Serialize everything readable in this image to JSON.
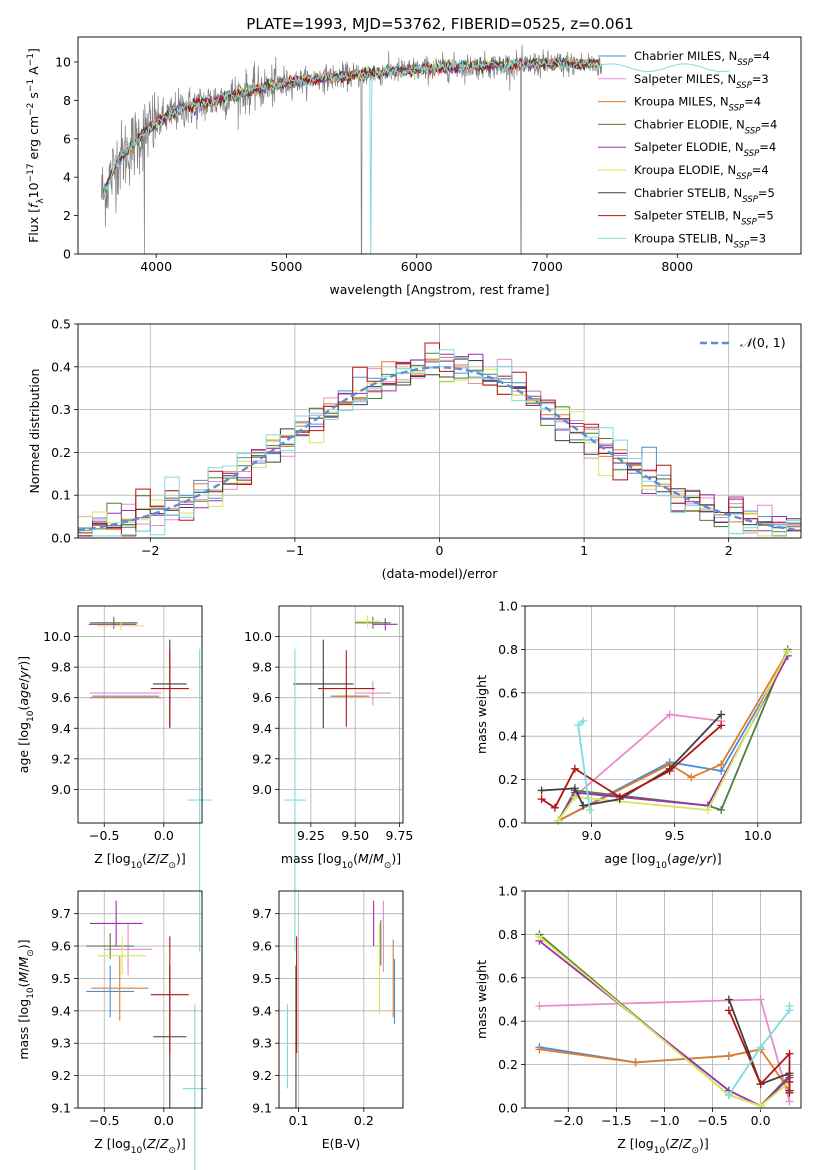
{
  "figure": {
    "title": "PLATE=1993, MJD=53762, FIBERID=0525, z=0.061"
  },
  "model_colors": {
    "Chabrier MILES": "#4a8fd6",
    "Salpeter MILES": "#e88dc8",
    "Kroupa MILES": "#e07b2a",
    "Chabrier ELODIE": "#4f7f3f",
    "Salpeter ELODIE": "#9b2fb0",
    "Kroupa ELODIE": "#d4e85a",
    "Chabrier STELIB": "#3f3f3f",
    "Salpeter STELIB": "#b01515",
    "Kroupa STELIB": "#7fdcdc"
  },
  "legend_spectrum": [
    {
      "name": "Chabrier MILES",
      "nssp": "4"
    },
    {
      "name": "Salpeter MILES",
      "nssp": "3"
    },
    {
      "name": "Kroupa MILES",
      "nssp": "4"
    },
    {
      "name": "Chabrier ELODIE",
      "nssp": "4"
    },
    {
      "name": "Salpeter ELODIE",
      "nssp": "4"
    },
    {
      "name": "Kroupa ELODIE",
      "nssp": "4"
    },
    {
      "name": "Chabrier STELIB",
      "nssp": "5"
    },
    {
      "name": "Salpeter STELIB",
      "nssp": "5"
    },
    {
      "name": "Kroupa STELIB",
      "nssp": "3"
    }
  ],
  "chart_data": [
    {
      "id": "spectrum",
      "type": "line",
      "xlabel": "wavelength [Angstrom, rest frame]",
      "ylabel": "Flux [fλ10⁻¹⁷ erg cm⁻² s⁻¹ A⁻¹]",
      "xlim": [
        3400,
        8950
      ],
      "ylim": [
        0,
        11.3
      ],
      "xticks": [
        4000,
        5000,
        6000,
        7000,
        8000
      ],
      "yticks": [
        0,
        2,
        4,
        6,
        8,
        10
      ],
      "data_trend": {
        "x": [
          3600,
          3700,
          3800,
          3900,
          4000,
          4100,
          4200,
          4300,
          4400,
          4600,
          4800,
          5000,
          5200,
          5500,
          5800,
          6000,
          6200,
          6500,
          6800,
          7000,
          7200,
          7400
        ],
        "y": [
          3.2,
          4.8,
          5.5,
          6.3,
          6.8,
          7.2,
          7.6,
          7.7,
          7.9,
          8.3,
          8.6,
          8.9,
          9.1,
          9.3,
          9.5,
          9.6,
          9.7,
          9.8,
          9.85,
          9.9,
          9.9,
          9.85
        ]
      },
      "model_extent": {
        "xmin": 3600,
        "xmax": 8400
      },
      "data_extent": {
        "xmin": 3580,
        "xmax": 7420
      },
      "grid": false
    },
    {
      "id": "residuals",
      "type": "histogram",
      "xlabel": "(data-model)/error",
      "ylabel": "Normed distribution",
      "xlim": [
        -2.5,
        2.5
      ],
      "ylim": [
        0,
        0.5
      ],
      "xticks": [
        -2,
        -1,
        0,
        1,
        2
      ],
      "yticks": [
        0.0,
        0.1,
        0.2,
        0.3,
        0.4,
        0.5
      ],
      "bin_width": 0.1,
      "reference_curve": {
        "name": "N(0,1)",
        "mean": 0,
        "sigma": 1
      },
      "legend_position": "top-right",
      "grid": true
    },
    {
      "id": "age_vs_Z",
      "type": "errorbar",
      "xlabel": "Z [log10(Z/Z⊙)]",
      "ylabel": "age [log10(age/yr)]",
      "xlim": [
        -0.72,
        0.32
      ],
      "ylim": [
        8.78,
        10.2
      ],
      "xticks": [
        -0.5,
        0.0
      ],
      "yticks": [
        9.0,
        9.2,
        9.4,
        9.6,
        9.8,
        10.0
      ],
      "points": [
        {
          "model": "Chabrier MILES",
          "x": -0.32,
          "xerr": 0.28,
          "y": 9.61,
          "yerr": 0.0
        },
        {
          "model": "Salpeter MILES",
          "x": -0.32,
          "xerr": 0.3,
          "y": 9.63,
          "yerr": 0.0
        },
        {
          "model": "Kroupa MILES",
          "x": -0.32,
          "xerr": 0.3,
          "y": 9.6,
          "yerr": 0.0
        },
        {
          "model": "Chabrier ELODIE",
          "x": -0.42,
          "xerr": 0.2,
          "y": 10.09,
          "yerr": 0.04
        },
        {
          "model": "Salpeter ELODIE",
          "x": -0.43,
          "xerr": 0.2,
          "y": 10.08,
          "yerr": 0.0
        },
        {
          "model": "Kroupa ELODIE",
          "x": -0.36,
          "xerr": 0.2,
          "y": 10.07,
          "yerr": 0.03
        },
        {
          "model": "Chabrier STELIB",
          "x": 0.05,
          "xerr": 0.14,
          "y": 9.69,
          "yerr": 0.29
        },
        {
          "model": "Salpeter STELIB",
          "x": 0.05,
          "xerr": 0.16,
          "y": 9.66,
          "yerr": 0.25
        },
        {
          "model": "Kroupa STELIB",
          "x": 0.3,
          "xerr": 0.1,
          "y": 8.93,
          "yerr": 0.99
        }
      ],
      "grid": true
    },
    {
      "id": "age_vs_mass",
      "type": "errorbar",
      "xlabel": "mass [log10(M/M⊙)]",
      "ylabel": "",
      "xlim": [
        9.07,
        9.77
      ],
      "ylim": [
        8.78,
        10.2
      ],
      "xticks": [
        9.25,
        9.5,
        9.75
      ],
      "yticks": [
        9.0,
        9.2,
        9.4,
        9.6,
        9.8,
        10.0
      ],
      "points": [
        {
          "model": "Chabrier MILES",
          "x": 9.46,
          "xerr": 0.1,
          "y": 9.61,
          "yerr": 0.0
        },
        {
          "model": "Salpeter MILES",
          "x": 9.6,
          "xerr": 0.1,
          "y": 9.63,
          "yerr": 0.08
        },
        {
          "model": "Kroupa MILES",
          "x": 9.48,
          "xerr": 0.1,
          "y": 9.61,
          "yerr": 0.0
        },
        {
          "model": "Chabrier ELODIE",
          "x": 9.6,
          "xerr": 0.1,
          "y": 10.09,
          "yerr": 0.04
        },
        {
          "model": "Salpeter ELODIE",
          "x": 9.67,
          "xerr": 0.07,
          "y": 10.08,
          "yerr": 0.04
        },
        {
          "model": "Kroupa ELODIE",
          "x": 9.57,
          "xerr": 0.07,
          "y": 10.1,
          "yerr": 0.04
        },
        {
          "model": "Chabrier STELIB",
          "x": 9.32,
          "xerr": 0.17,
          "y": 9.69,
          "yerr": 0.29
        },
        {
          "model": "Salpeter STELIB",
          "x": 9.45,
          "xerr": 0.16,
          "y": 9.66,
          "yerr": 0.25
        },
        {
          "model": "Kroupa STELIB",
          "x": 9.16,
          "xerr": 0.06,
          "y": 8.93,
          "yerr": 0.99
        }
      ],
      "grid": true
    },
    {
      "id": "massweight_vs_age",
      "type": "line",
      "xlabel": "age [log10(age/yr)]",
      "ylabel": "mass weight",
      "xlim": [
        8.6,
        10.26
      ],
      "ylim": [
        0,
        1.0
      ],
      "xticks": [
        9.0,
        9.5,
        10.0
      ],
      "yticks": [
        0.0,
        0.2,
        0.4,
        0.6,
        0.8,
        1.0
      ],
      "series": [
        {
          "model": "Chabrier MILES",
          "x": [
            8.8,
            9.47,
            9.78,
            10.18
          ],
          "y": [
            0.01,
            0.28,
            0.24,
            0.77
          ]
        },
        {
          "model": "Salpeter MILES",
          "x": [
            8.91,
            9.47,
            9.78
          ],
          "y": [
            0.13,
            0.5,
            0.47
          ]
        },
        {
          "model": "Kroupa MILES",
          "x": [
            8.8,
            9.47,
            9.6,
            9.78,
            10.18
          ],
          "y": [
            0.01,
            0.27,
            0.21,
            0.27,
            0.79
          ]
        },
        {
          "model": "Chabrier ELODIE",
          "x": [
            8.8,
            8.9,
            9.7,
            9.78,
            10.18
          ],
          "y": [
            0.01,
            0.15,
            0.08,
            0.06,
            0.8
          ]
        },
        {
          "model": "Salpeter ELODIE",
          "x": [
            8.8,
            8.9,
            9.7,
            10.18
          ],
          "y": [
            0.01,
            0.14,
            0.08,
            0.77
          ]
        },
        {
          "model": "Kroupa ELODIE",
          "x": [
            8.8,
            8.9,
            9.7,
            10.18
          ],
          "y": [
            0.01,
            0.12,
            0.06,
            0.79
          ]
        },
        {
          "model": "Chabrier STELIB",
          "x": [
            8.7,
            8.9,
            8.95,
            9.17,
            9.47,
            9.78
          ],
          "y": [
            0.15,
            0.16,
            0.08,
            0.11,
            0.25,
            0.5
          ]
        },
        {
          "model": "Salpeter STELIB",
          "x": [
            8.7,
            8.78,
            8.9,
            9.17,
            9.47,
            9.78
          ],
          "y": [
            0.11,
            0.07,
            0.25,
            0.12,
            0.24,
            0.45
          ]
        },
        {
          "model": "Kroupa STELIB",
          "x": [
            8.95,
            8.92,
            8.99
          ],
          "y": [
            0.47,
            0.45,
            0.06
          ]
        }
      ],
      "grid": true
    },
    {
      "id": "mass_vs_Z",
      "type": "errorbar",
      "xlabel": "Z [log10(Z/Z⊙)]",
      "ylabel": "mass [log10(M/M⊙)]",
      "xlim": [
        -0.72,
        0.32
      ],
      "ylim": [
        9.1,
        9.77
      ],
      "xticks": [
        -0.5,
        0.0
      ],
      "yticks": [
        9.1,
        9.2,
        9.3,
        9.4,
        9.5,
        9.6,
        9.7
      ],
      "points": [
        {
          "model": "Chabrier MILES",
          "x": -0.45,
          "xerr": 0.2,
          "y": 9.46,
          "yerr": 0.08
        },
        {
          "model": "Salpeter MILES",
          "x": -0.3,
          "xerr": 0.2,
          "y": 9.59,
          "yerr": 0.08
        },
        {
          "model": "Kroupa MILES",
          "x": -0.37,
          "xerr": 0.24,
          "y": 9.47,
          "yerr": 0.1
        },
        {
          "model": "Chabrier ELODIE",
          "x": -0.45,
          "xerr": 0.2,
          "y": 9.6,
          "yerr": 0.04
        },
        {
          "model": "Salpeter ELODIE",
          "x": -0.4,
          "xerr": 0.22,
          "y": 9.67,
          "yerr": 0.07
        },
        {
          "model": "Kroupa ELODIE",
          "x": -0.35,
          "xerr": 0.2,
          "y": 9.57,
          "yerr": 0.06
        },
        {
          "model": "Chabrier STELIB",
          "x": 0.05,
          "xerr": 0.14,
          "y": 9.32,
          "yerr": 0.22
        },
        {
          "model": "Salpeter STELIB",
          "x": 0.05,
          "xerr": 0.16,
          "y": 9.45,
          "yerr": 0.18
        },
        {
          "model": "Kroupa STELIB",
          "x": 0.26,
          "xerr": 0.1,
          "y": 9.16,
          "yerr": 0.26
        }
      ],
      "grid": true
    },
    {
      "id": "mass_vs_EBV",
      "type": "errorbar",
      "xlabel": "E(B-V)",
      "ylabel": "",
      "xlim": [
        0.07,
        0.26
      ],
      "ylim": [
        9.1,
        9.77
      ],
      "xticks": [
        0.1,
        0.2
      ],
      "yticks": [
        9.1,
        9.2,
        9.3,
        9.4,
        9.5,
        9.6,
        9.7
      ],
      "points": [
        {
          "model": "Chabrier MILES",
          "x": 0.247,
          "y": 9.46,
          "yerr": 0.1
        },
        {
          "model": "Salpeter MILES",
          "x": 0.23,
          "y": 9.63,
          "yerr": 0.11
        },
        {
          "model": "Kroupa MILES",
          "x": 0.245,
          "y": 9.5,
          "yerr": 0.12
        },
        {
          "model": "Chabrier ELODIE",
          "x": 0.226,
          "y": 9.61,
          "yerr": 0.07
        },
        {
          "model": "Salpeter ELODIE",
          "x": 0.215,
          "y": 9.67,
          "yerr": 0.07
        },
        {
          "model": "Kroupa ELODIE",
          "x": 0.224,
          "y": 9.53,
          "yerr": 0.14
        },
        {
          "model": "Chabrier STELIB",
          "x": 0.096,
          "y": 9.32,
          "yerr": 0.22
        },
        {
          "model": "Salpeter STELIB",
          "x": 0.097,
          "y": 9.45,
          "yerr": 0.18
        },
        {
          "model": "Kroupa STELIB",
          "x": 0.083,
          "y": 9.29,
          "yerr": 0.13
        }
      ],
      "grid": true
    },
    {
      "id": "massweight_vs_Z",
      "type": "line",
      "xlabel": "Z [log10(Z/Z⊙)]",
      "ylabel": "mass weight",
      "xlim": [
        -2.45,
        0.42
      ],
      "ylim": [
        0,
        1.0
      ],
      "xticks": [
        -2.0,
        -1.5,
        -1.0,
        -0.5,
        0.0
      ],
      "yticks": [
        0.0,
        0.2,
        0.4,
        0.6,
        0.8,
        1.0
      ],
      "series": [
        {
          "model": "Chabrier MILES",
          "x": [
            -2.3,
            -1.3,
            -0.33,
            0.0
          ],
          "y": [
            0.28,
            0.21,
            0.24,
            0.27
          ]
        },
        {
          "model": "Salpeter MILES",
          "x": [
            -2.3,
            0.0,
            0.3
          ],
          "y": [
            0.47,
            0.5,
            0.03
          ]
        },
        {
          "model": "Kroupa MILES",
          "x": [
            -2.3,
            -1.3,
            -0.33,
            0.0,
            0.3
          ],
          "y": [
            0.27,
            0.21,
            0.24,
            0.27,
            0.08
          ]
        },
        {
          "model": "Chabrier ELODIE",
          "x": [
            -2.3,
            -0.33,
            0.0,
            0.3
          ],
          "y": [
            0.8,
            0.06,
            0.01,
            0.15
          ]
        },
        {
          "model": "Salpeter ELODIE",
          "x": [
            -2.3,
            -0.33,
            0.0,
            0.3
          ],
          "y": [
            0.77,
            0.08,
            0.01,
            0.14
          ]
        },
        {
          "model": "Kroupa ELODIE",
          "x": [
            -2.3,
            -0.33,
            0.0,
            0.3
          ],
          "y": [
            0.79,
            0.06,
            0.01,
            0.12
          ]
        },
        {
          "model": "Chabrier STELIB",
          "x": [
            -0.33,
            0.0,
            0.3,
            0.3
          ],
          "y": [
            0.5,
            0.11,
            0.16,
            0.08
          ]
        },
        {
          "model": "Salpeter STELIB",
          "x": [
            -0.33,
            0.0,
            0.3,
            0.3,
            0.3
          ],
          "y": [
            0.45,
            0.11,
            0.25,
            0.12,
            0.07
          ]
        },
        {
          "model": "Kroupa STELIB",
          "x": [
            -0.33,
            0.0,
            0.3,
            0.3
          ],
          "y": [
            0.06,
            0.28,
            0.45,
            0.47
          ]
        }
      ],
      "grid": true
    }
  ]
}
